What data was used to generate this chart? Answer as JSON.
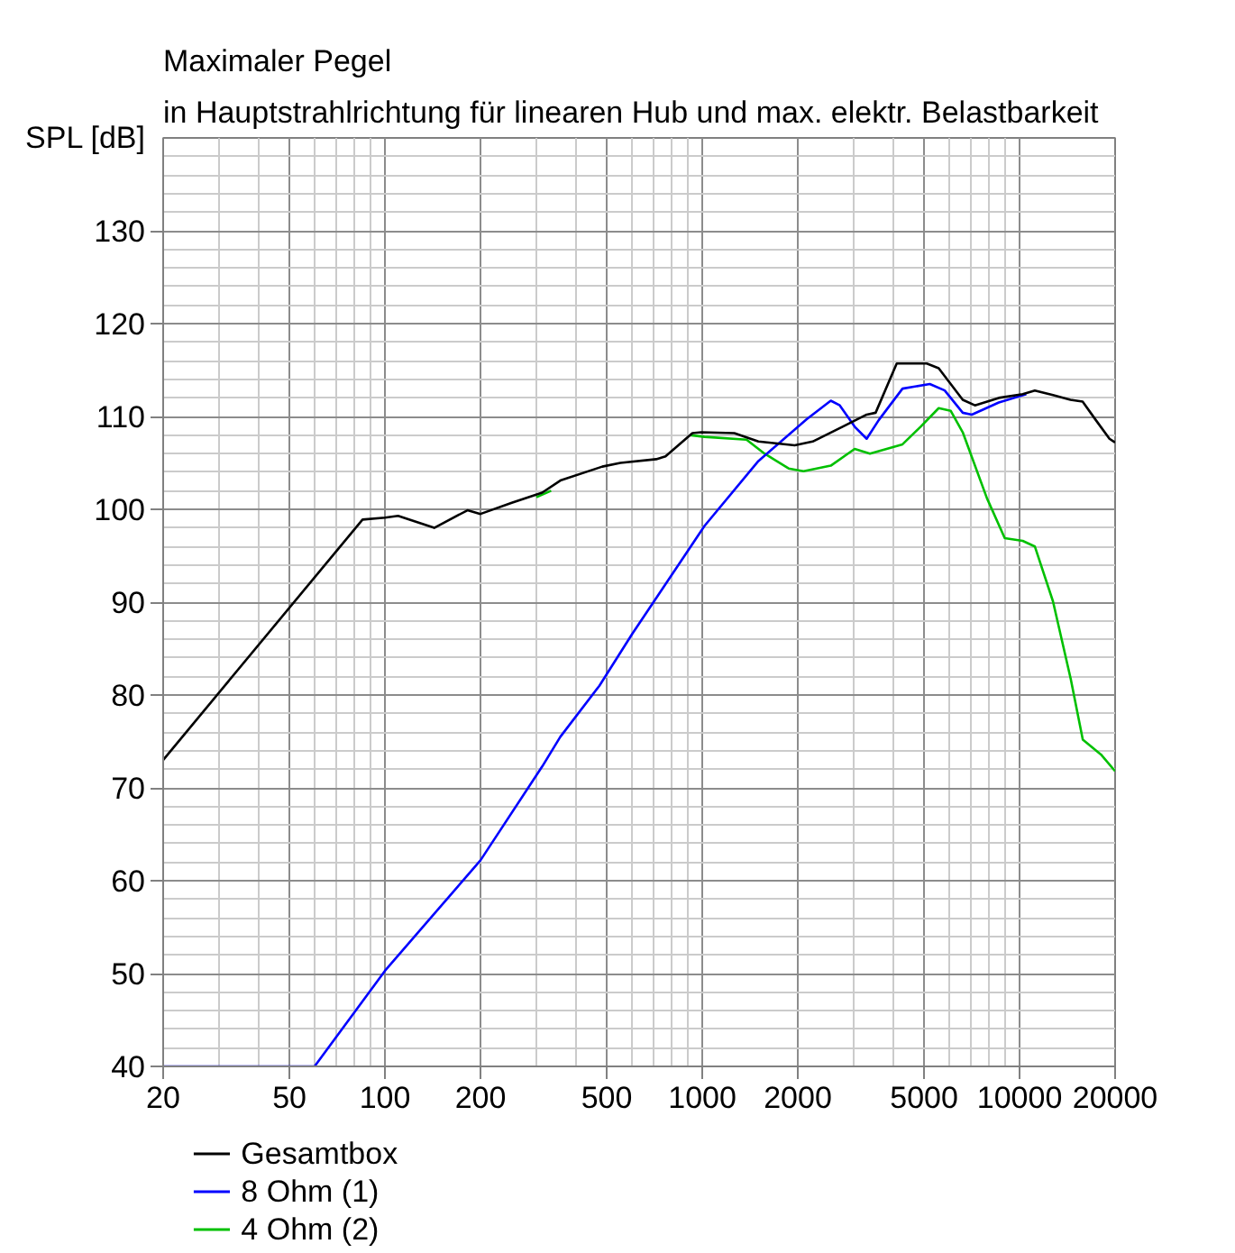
{
  "chart_data": {
    "type": "line",
    "title": "Maximaler Pegel",
    "subtitle": "in Hauptstrahlrichtung für linearen Hub und max. elektr. Belastbarkeit",
    "ylabel": "SPL [dB]",
    "log": "x",
    "xlim": [
      20,
      20000
    ],
    "xticks": [
      20,
      50,
      100,
      200,
      500,
      1000,
      2000,
      5000,
      10000,
      20000
    ],
    "ylim": [
      40,
      140
    ],
    "yticks": [
      40,
      50,
      60,
      70,
      80,
      90,
      100,
      110,
      120,
      130
    ],
    "grid": true,
    "legend": "bottom left",
    "series": [
      {
        "name": "Gesamtbox",
        "color": "#000000",
        "x": [
          20,
          85,
          100,
          110,
          143,
          182,
          200,
          251,
          313,
          357,
          484,
          552,
          716,
          766,
          931,
          993,
          1262,
          1503,
          1955,
          2228,
          2768,
          3297,
          3518,
          4100,
          5100,
          5560,
          6620,
          7230,
          8600,
          10230,
          11170,
          12740,
          14460,
          15800,
          17400,
          19200,
          20000
        ],
        "values": [
          73.0,
          98.9,
          99.1,
          99.3,
          98.0,
          99.9,
          99.5,
          100.7,
          101.8,
          103.1,
          104.6,
          105.0,
          105.4,
          105.7,
          108.2,
          108.3,
          108.2,
          107.3,
          106.9,
          107.3,
          108.9,
          110.2,
          110.4,
          115.7,
          115.7,
          115.2,
          111.8,
          111.2,
          112.0,
          112.4,
          112.8,
          112.3,
          111.8,
          111.6,
          109.6,
          107.6,
          107.2
        ]
      },
      {
        "name": "8 Ohm (1)",
        "color": "#0000ff",
        "x": [
          20,
          60,
          100,
          200,
          313,
          357,
          474,
          602,
          1016,
          1503,
          2134,
          2541,
          2712,
          3022,
          3297,
          3597,
          4276,
          5213,
          5807,
          6620,
          7070,
          8600,
          10500
        ],
        "values": [
          40.0,
          40.0,
          50.3,
          62.2,
          72.3,
          75.5,
          81.0,
          86.6,
          98.2,
          105.2,
          109.7,
          111.7,
          111.2,
          108.9,
          107.6,
          109.6,
          113.0,
          113.5,
          112.8,
          110.4,
          110.2,
          111.5,
          112.4
        ]
      },
      {
        "name": "4 Ohm (2)",
        "color": "#00c000",
        "x": [
          300,
          334,
          600,
          912,
          1016,
          1379,
          1571,
          1871,
          2085,
          2541,
          3022,
          3376,
          4276,
          4877,
          5560,
          6070,
          6620,
          7890,
          8980,
          10230,
          11170,
          12740,
          14500,
          15820,
          18040,
          20000
        ],
        "values": [
          101.3,
          102.0,
          null,
          108.0,
          107.8,
          107.5,
          106.0,
          104.4,
          104.1,
          104.7,
          106.5,
          106.0,
          107.0,
          108.9,
          110.9,
          110.6,
          108.3,
          101.2,
          96.9,
          96.6,
          96.0,
          90.1,
          81.7,
          75.2,
          73.6,
          71.8
        ]
      }
    ]
  }
}
